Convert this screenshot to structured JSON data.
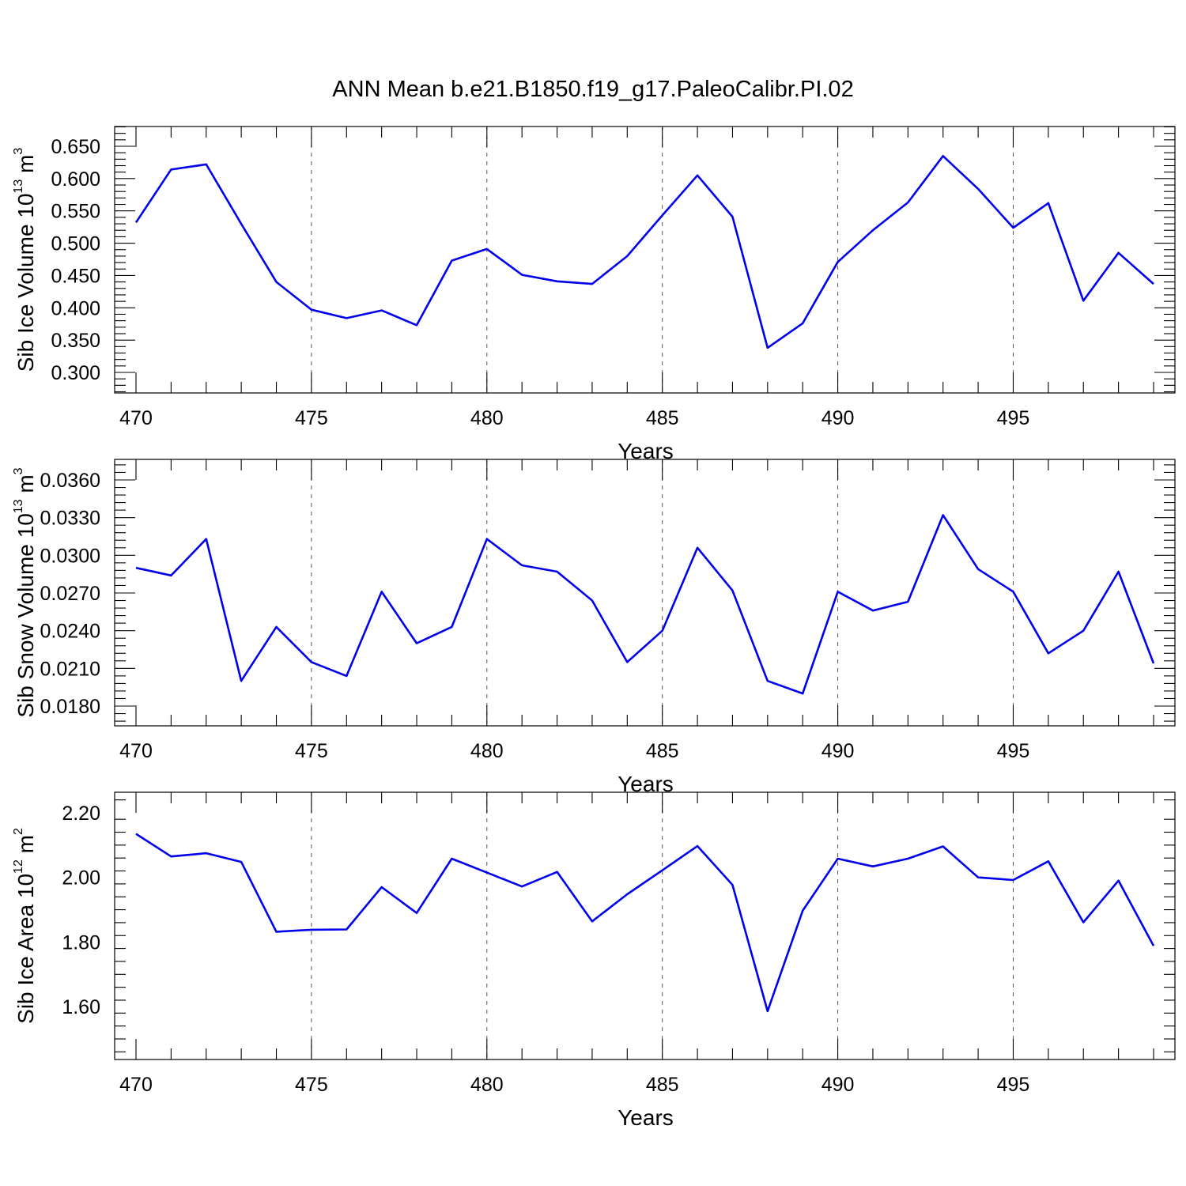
{
  "chart_data": {
    "title": "ANN Mean b.e21.B1850.f19_g17.PaleoCalibr.PI.02",
    "type": "line",
    "panels": [
      {
        "ylabel": "Sib Ice Volume 10",
        "ylabel_sup": "13",
        "ylabel_unit": " m",
        "ylabel_unit_sup": "3",
        "xlabel": "Years",
        "xlim": [
          470,
          499
        ],
        "ylim": [
          0.3,
          0.65
        ],
        "xticks": [
          470,
          475,
          480,
          485,
          490,
          495
        ],
        "xtick_labels": [
          "470",
          "475",
          "480",
          "485",
          "490",
          "495"
        ],
        "yticks": [
          0.3,
          0.35,
          0.4,
          0.45,
          0.5,
          0.55,
          0.6,
          0.65
        ],
        "ytick_labels": [
          "0.300",
          "0.350",
          "0.400",
          "0.450",
          "0.500",
          "0.550",
          "0.600",
          "0.650"
        ],
        "grid_x": [
          475,
          480,
          485,
          490,
          495
        ],
        "color": "#0000ee",
        "x": [
          470,
          471,
          472,
          473,
          474,
          475,
          476,
          477,
          478,
          479,
          480,
          481,
          482,
          483,
          484,
          485,
          486,
          487,
          488,
          489,
          490,
          491,
          492,
          493,
          494,
          495,
          496,
          497,
          498,
          499
        ],
        "values": [
          0.532,
          0.614,
          0.622,
          0.53,
          0.44,
          0.397,
          0.384,
          0.396,
          0.373,
          0.473,
          0.491,
          0.451,
          0.441,
          0.437,
          0.48,
          0.543,
          0.605,
          0.541,
          0.338,
          0.376,
          0.471,
          0.52,
          0.563,
          0.635,
          0.584,
          0.524,
          0.562,
          0.411,
          0.485,
          0.437
        ]
      },
      {
        "ylabel": "Sib Snow Volume 10",
        "ylabel_sup": "13",
        "ylabel_unit": " m",
        "ylabel_unit_sup": "3",
        "xlabel": "Years",
        "xlim": [
          470,
          499
        ],
        "ylim": [
          0.018,
          0.036
        ],
        "xticks": [
          470,
          475,
          480,
          485,
          490,
          495
        ],
        "xtick_labels": [
          "470",
          "475",
          "480",
          "485",
          "490",
          "495"
        ],
        "yticks": [
          0.018,
          0.021,
          0.024,
          0.027,
          0.03,
          0.033,
          0.036
        ],
        "ytick_labels": [
          "0.0180",
          "0.0210",
          "0.0240",
          "0.0270",
          "0.0300",
          "0.0330",
          "0.0360"
        ],
        "grid_x": [
          475,
          480,
          485,
          490,
          495
        ],
        "color": "#0000ee",
        "x": [
          470,
          471,
          472,
          473,
          474,
          475,
          476,
          477,
          478,
          479,
          480,
          481,
          482,
          483,
          484,
          485,
          486,
          487,
          488,
          489,
          490,
          491,
          492,
          493,
          494,
          495,
          496,
          497,
          498,
          499
        ],
        "values": [
          0.029,
          0.0284,
          0.0313,
          0.02,
          0.0243,
          0.0215,
          0.0204,
          0.0271,
          0.023,
          0.0243,
          0.0313,
          0.0292,
          0.0287,
          0.0264,
          0.0215,
          0.024,
          0.0306,
          0.0272,
          0.02,
          0.019,
          0.0271,
          0.0256,
          0.0263,
          0.0332,
          0.0289,
          0.0271,
          0.0222,
          0.024,
          0.0287,
          0.0214
        ]
      },
      {
        "ylabel": "Sib Ice Area 10",
        "ylabel_sup": "12",
        "ylabel_unit": " m",
        "ylabel_unit_sup": "2",
        "xlabel": "Years",
        "xlim": [
          470,
          499
        ],
        "ylim": [
          1.5,
          2.2
        ],
        "xticks": [
          470,
          475,
          480,
          485,
          490,
          495
        ],
        "xtick_labels": [
          "470",
          "475",
          "480",
          "485",
          "490",
          "495"
        ],
        "yticks": [
          1.6,
          1.8,
          2.0,
          2.2
        ],
        "ytick_labels": [
          "1.60",
          "1.80",
          "2.00",
          "2.20"
        ],
        "grid_x": [
          475,
          480,
          485,
          490,
          495
        ],
        "color": "#0000ee",
        "x": [
          470,
          471,
          472,
          473,
          474,
          475,
          476,
          477,
          478,
          479,
          480,
          481,
          482,
          483,
          484,
          485,
          486,
          487,
          488,
          489,
          490,
          491,
          492,
          493,
          494,
          495,
          496,
          497,
          498,
          499
        ],
        "values": [
          2.135,
          2.065,
          2.075,
          2.048,
          1.832,
          1.838,
          1.839,
          1.97,
          1.89,
          2.058,
          2.015,
          1.972,
          2.017,
          1.864,
          1.948,
          2.022,
          2.097,
          1.977,
          1.586,
          1.897,
          2.058,
          2.034,
          2.058,
          2.096,
          2.0,
          1.992,
          2.05,
          1.861,
          1.99,
          1.788
        ]
      }
    ]
  }
}
